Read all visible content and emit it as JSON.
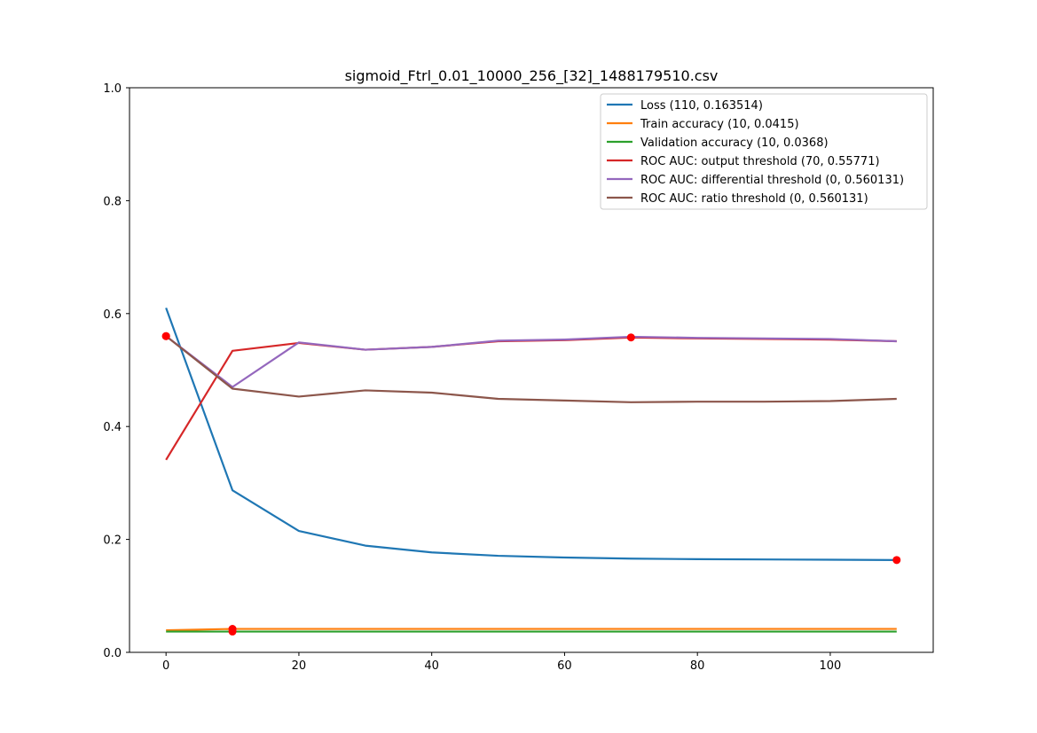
{
  "chart_data": {
    "type": "line",
    "title": "sigmoid_Ftrl_0.01_10000_256_[32]_1488179510.csv",
    "xlabel": "",
    "ylabel": "",
    "xlim": [
      -5.5,
      115.5
    ],
    "ylim": [
      0,
      1
    ],
    "xticks": [
      0,
      20,
      40,
      60,
      80,
      100
    ],
    "yticks": [
      0.0,
      0.2,
      0.4,
      0.6,
      0.8,
      1.0
    ],
    "xtick_labels": [
      "0",
      "20",
      "40",
      "60",
      "80",
      "100"
    ],
    "ytick_labels": [
      "0.0",
      "0.2",
      "0.4",
      "0.6",
      "0.8",
      "1.0"
    ],
    "grid": false,
    "legend_position": "top-right",
    "x": [
      0,
      10,
      20,
      30,
      40,
      50,
      60,
      70,
      80,
      90,
      100,
      110
    ],
    "series": [
      {
        "name": "Loss (110, 0.163514)",
        "color": "#1f77b4",
        "values": [
          0.61,
          0.287,
          0.215,
          0.189,
          0.177,
          0.171,
          0.168,
          0.166,
          0.165,
          0.1645,
          0.164,
          0.163514
        ],
        "marker": [
          110,
          0.163514
        ]
      },
      {
        "name": "Train accuracy (10, 0.0415)",
        "color": "#ff7f0e",
        "values": [
          0.039,
          0.0415,
          0.0415,
          0.0415,
          0.0415,
          0.0415,
          0.0415,
          0.0415,
          0.0415,
          0.0415,
          0.0415,
          0.0415
        ],
        "marker": [
          10,
          0.0415
        ]
      },
      {
        "name": "Validation accuracy (10, 0.0368)",
        "color": "#2ca02c",
        "values": [
          0.0368,
          0.0368,
          0.0368,
          0.0368,
          0.0368,
          0.0368,
          0.0368,
          0.0368,
          0.0368,
          0.0368,
          0.0368,
          0.0368
        ],
        "marker": [
          10,
          0.0368
        ]
      },
      {
        "name": "ROC AUC: output threshold (70, 0.55771)",
        "color": "#d62728",
        "values": [
          0.341,
          0.534,
          0.548,
          0.536,
          0.541,
          0.551,
          0.553,
          0.55771,
          0.556,
          0.555,
          0.554,
          0.551
        ],
        "marker": [
          70,
          0.55771
        ]
      },
      {
        "name": "ROC AUC: differential threshold (0, 0.560131)",
        "color": "#9467bd",
        "values": [
          0.560131,
          0.47,
          0.549,
          0.536,
          0.541,
          0.552,
          0.554,
          0.559,
          0.557,
          0.556,
          0.555,
          0.551
        ],
        "marker": [
          0,
          0.560131
        ]
      },
      {
        "name": "ROC AUC: ratio threshold (0, 0.560131)",
        "color": "#8c564b",
        "values": [
          0.560131,
          0.467,
          0.453,
          0.464,
          0.46,
          0.449,
          0.446,
          0.443,
          0.444,
          0.444,
          0.445,
          0.449
        ],
        "marker": [
          0,
          0.560131
        ]
      }
    ],
    "marker_color": "#ff0000"
  }
}
